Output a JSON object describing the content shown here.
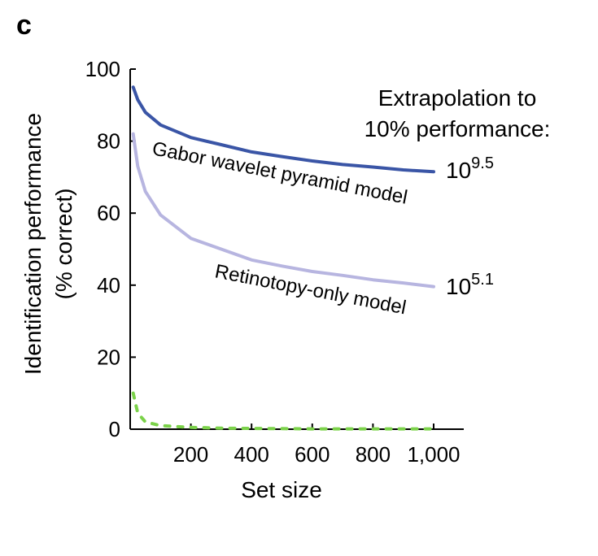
{
  "panel_label": "c",
  "chart_data": {
    "type": "line",
    "xlabel": "Set size",
    "ylabel_line1": "Identification performance",
    "ylabel_line2": "(% correct)",
    "xlim": [
      0,
      1000
    ],
    "ylim": [
      0,
      100
    ],
    "x_ticks": [
      200,
      400,
      600,
      800,
      1000
    ],
    "x_tick_labels": [
      "200",
      "400",
      "600",
      "800",
      "1,000"
    ],
    "y_ticks": [
      0,
      20,
      40,
      60,
      80,
      100
    ],
    "y_tick_labels": [
      "0",
      "20",
      "40",
      "60",
      "80",
      "100"
    ],
    "grid": false,
    "series": [
      {
        "name": "Gabor wavelet pyramid model",
        "color": "#3a55a6",
        "style": "solid",
        "x": [
          10,
          25,
          50,
          100,
          200,
          300,
          400,
          500,
          600,
          700,
          800,
          900,
          1000
        ],
        "y": [
          95,
          91.5,
          88,
          84.5,
          81,
          79,
          77,
          75.7,
          74.5,
          73.5,
          72.8,
          72,
          71.5
        ]
      },
      {
        "name": "Retinotopy-only model",
        "color": "#b7b5e0",
        "style": "solid",
        "x": [
          10,
          25,
          50,
          100,
          200,
          300,
          400,
          500,
          600,
          700,
          800,
          900,
          1000
        ],
        "y": [
          82,
          73,
          66,
          59.5,
          53,
          50,
          47,
          45.3,
          43.8,
          42.7,
          41.5,
          40.6,
          39.6
        ]
      },
      {
        "name": "",
        "color": "#7bd24a",
        "style": "dashed",
        "x": [
          10,
          25,
          50,
          100,
          200,
          300,
          400,
          500,
          600,
          700,
          800,
          900,
          1000
        ],
        "y": [
          10,
          4.5,
          2,
          1,
          0.5,
          0.3,
          0.2,
          0.15,
          0.1,
          0.1,
          0.1,
          0.1,
          0.1
        ]
      }
    ],
    "annotations": {
      "extrapolation_line1": "Extrapolation to",
      "extrapolation_line2": "10% performance:",
      "gabor_label": "Gabor wavelet pyramid model",
      "retinotopy_label": "Retinotopy-only model",
      "gabor_base": "10",
      "gabor_exponent": "9.5",
      "retinotopy_base": "10",
      "retinotopy_exponent": "5.1"
    }
  }
}
